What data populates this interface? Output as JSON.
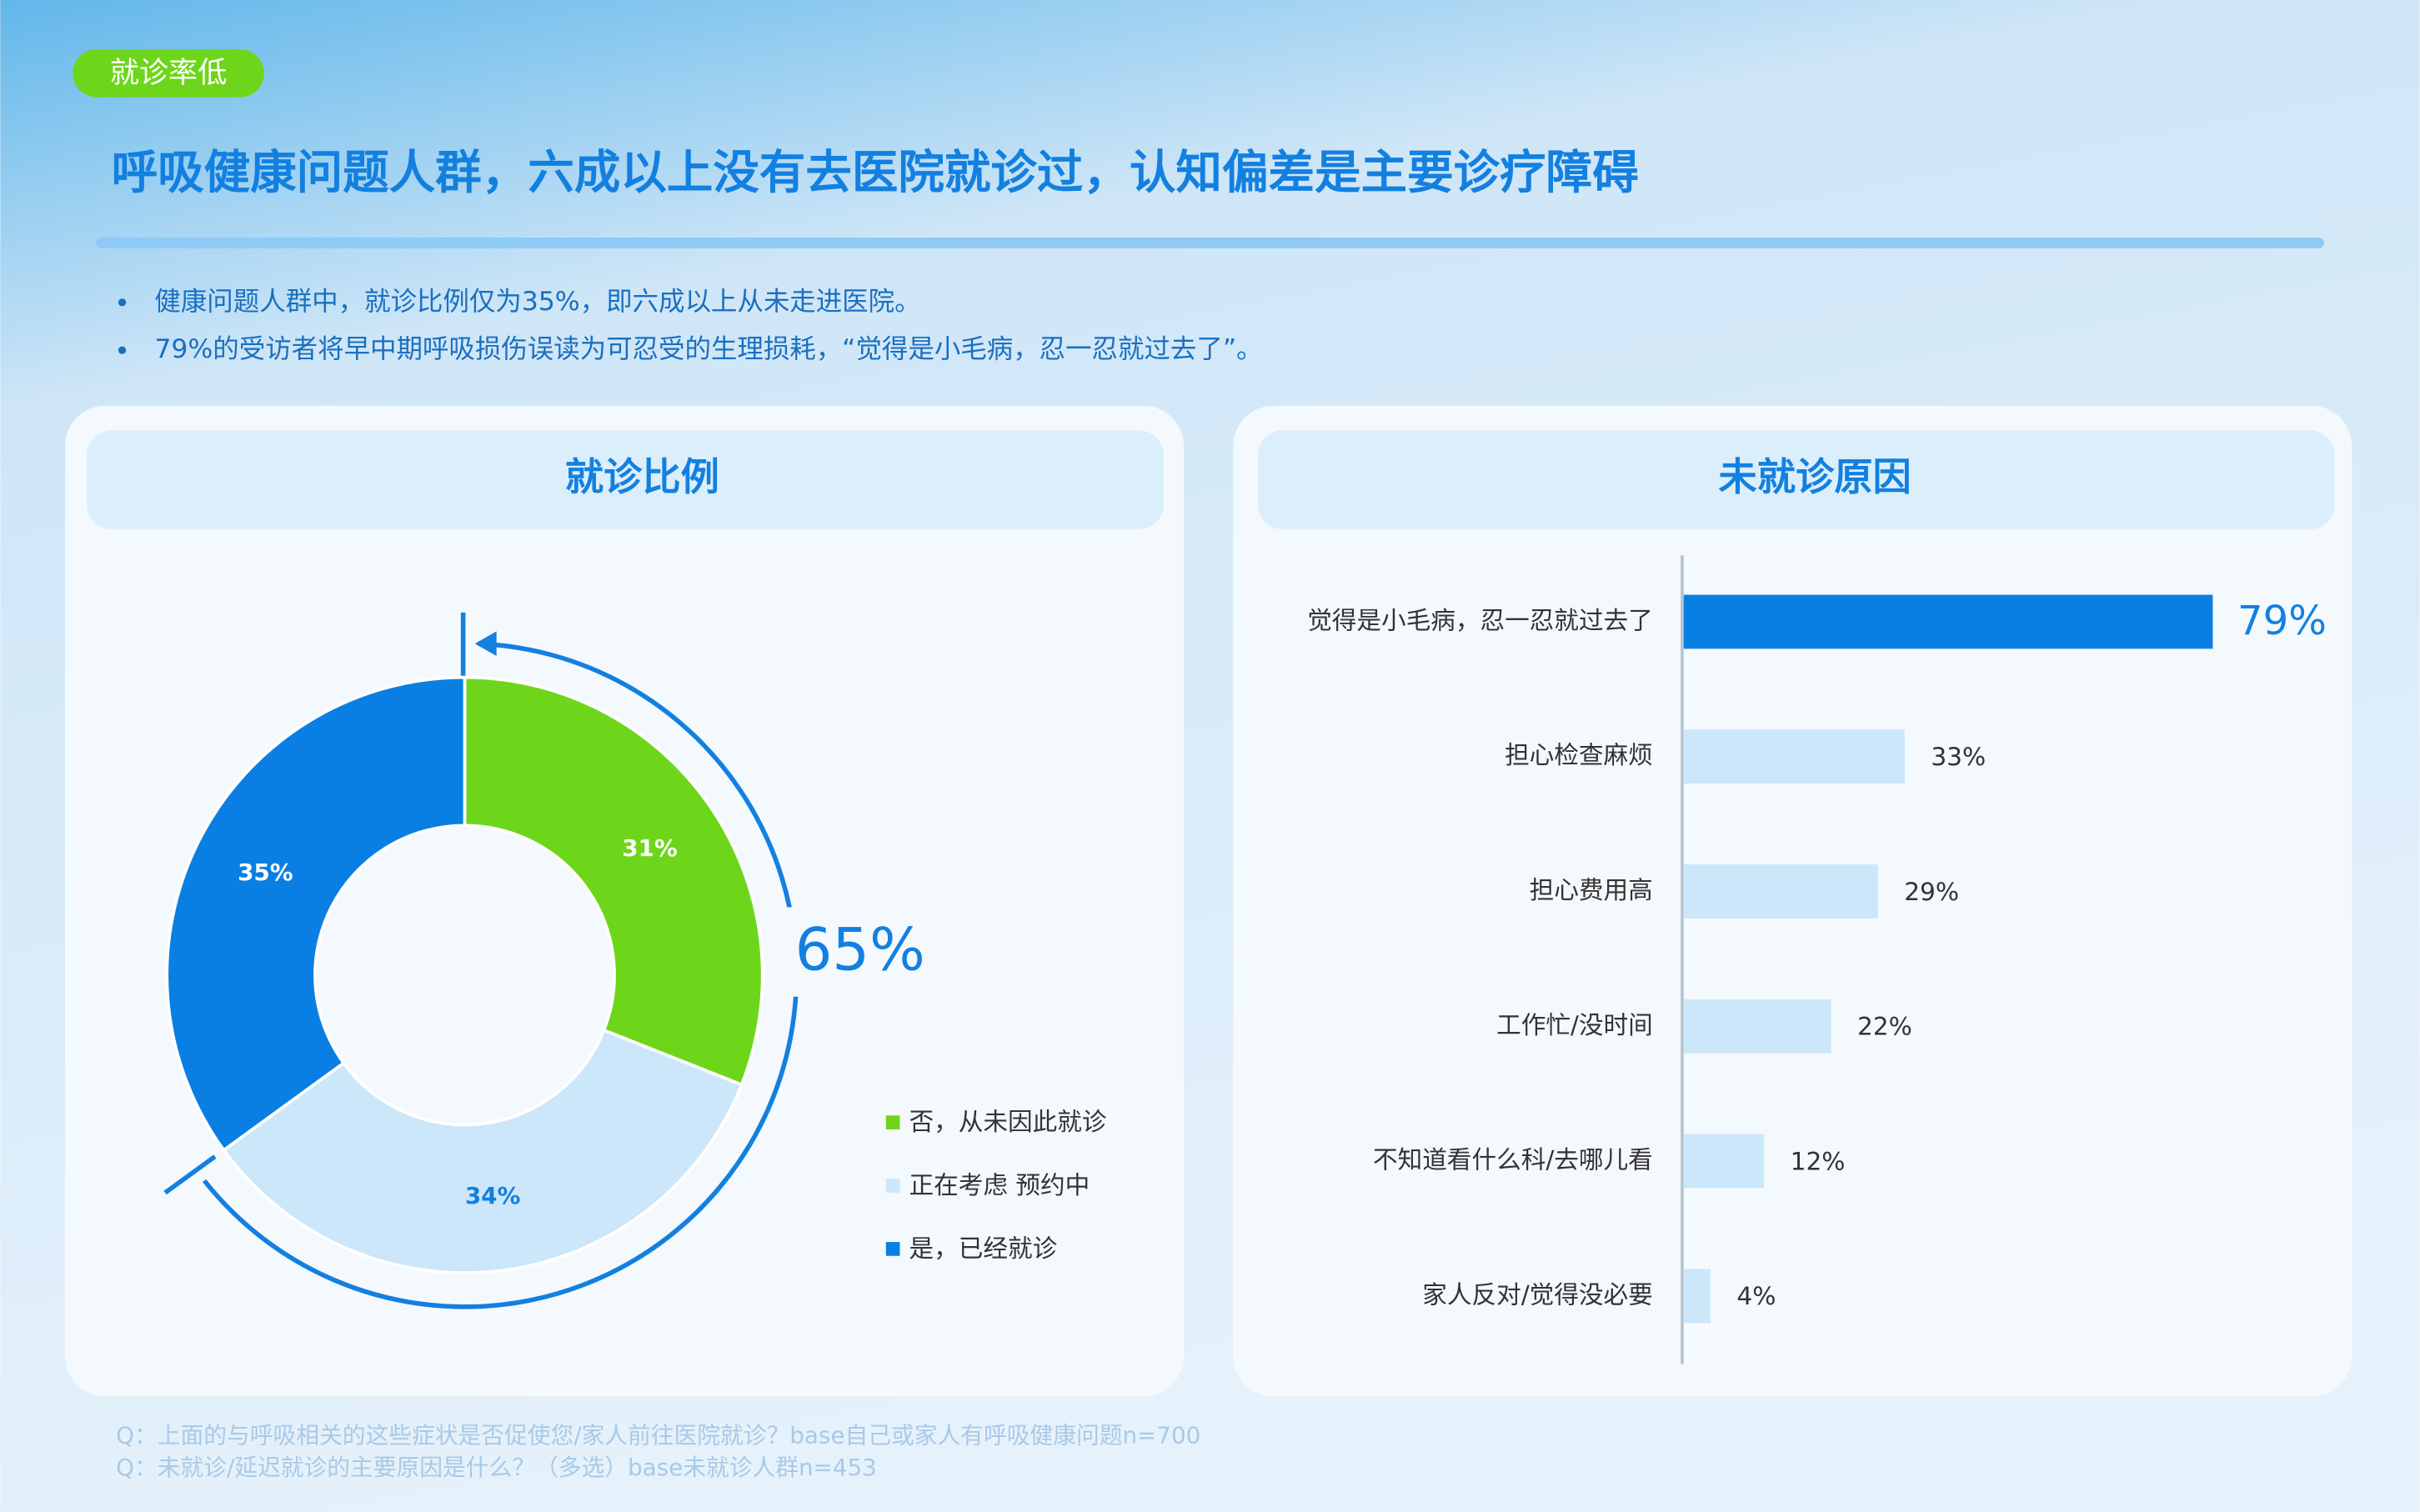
{
  "tag": "就诊率低",
  "title": "呼吸健康问题人群，六成以上没有去医院就诊过，认知偏差是主要诊疗障碍",
  "bullets": [
    "健康问题人群中，就诊比例仅为35%，即六成以上从未走进医院。",
    "79%的受访者将早中期呼吸损伤误读为可忍受的生理损耗，“觉得是小毛病，忍一忍就过去了”。"
  ],
  "footnotes": [
    "Q：上面的与呼吸相关的这些症状是否促使您/家人前往医院就诊？base自己或家人有呼吸健康问题n=700",
    "Q：未就诊/延迟就诊的主要原因是什么？（多选）base未就诊人群n=453"
  ],
  "chart_data": [
    {
      "type": "donut",
      "title": "就诊比例",
      "categories": [
        "否，从未因此就诊",
        "正在考虑 预约中",
        "是，已经就诊"
      ],
      "values": [
        31,
        34,
        35
      ],
      "value_labels": [
        "31%",
        "34%",
        "35%"
      ],
      "colors": [
        "#6dd61a",
        "#cce6fa",
        "#0a7fe3"
      ],
      "annotation": "65%"
    },
    {
      "type": "hbar",
      "title": "未就诊原因",
      "categories": [
        "觉得是小毛病，忍一忍就过去了",
        "担心检查麻烦",
        "担心费用高",
        "工作忙/没时间",
        "不知道看什么科/去哪儿看",
        "家人反对/觉得没必要"
      ],
      "values": [
        79,
        33,
        29,
        22,
        12,
        4
      ],
      "value_labels": [
        "79%",
        "33%",
        "29%",
        "22%",
        "12%",
        "4%"
      ],
      "colors": [
        "#0a7fe3",
        "#cce6fa",
        "#cce6fa",
        "#cce6fa",
        "#cce6fa",
        "#cce6fa"
      ],
      "xlim": [
        0,
        100
      ]
    }
  ]
}
